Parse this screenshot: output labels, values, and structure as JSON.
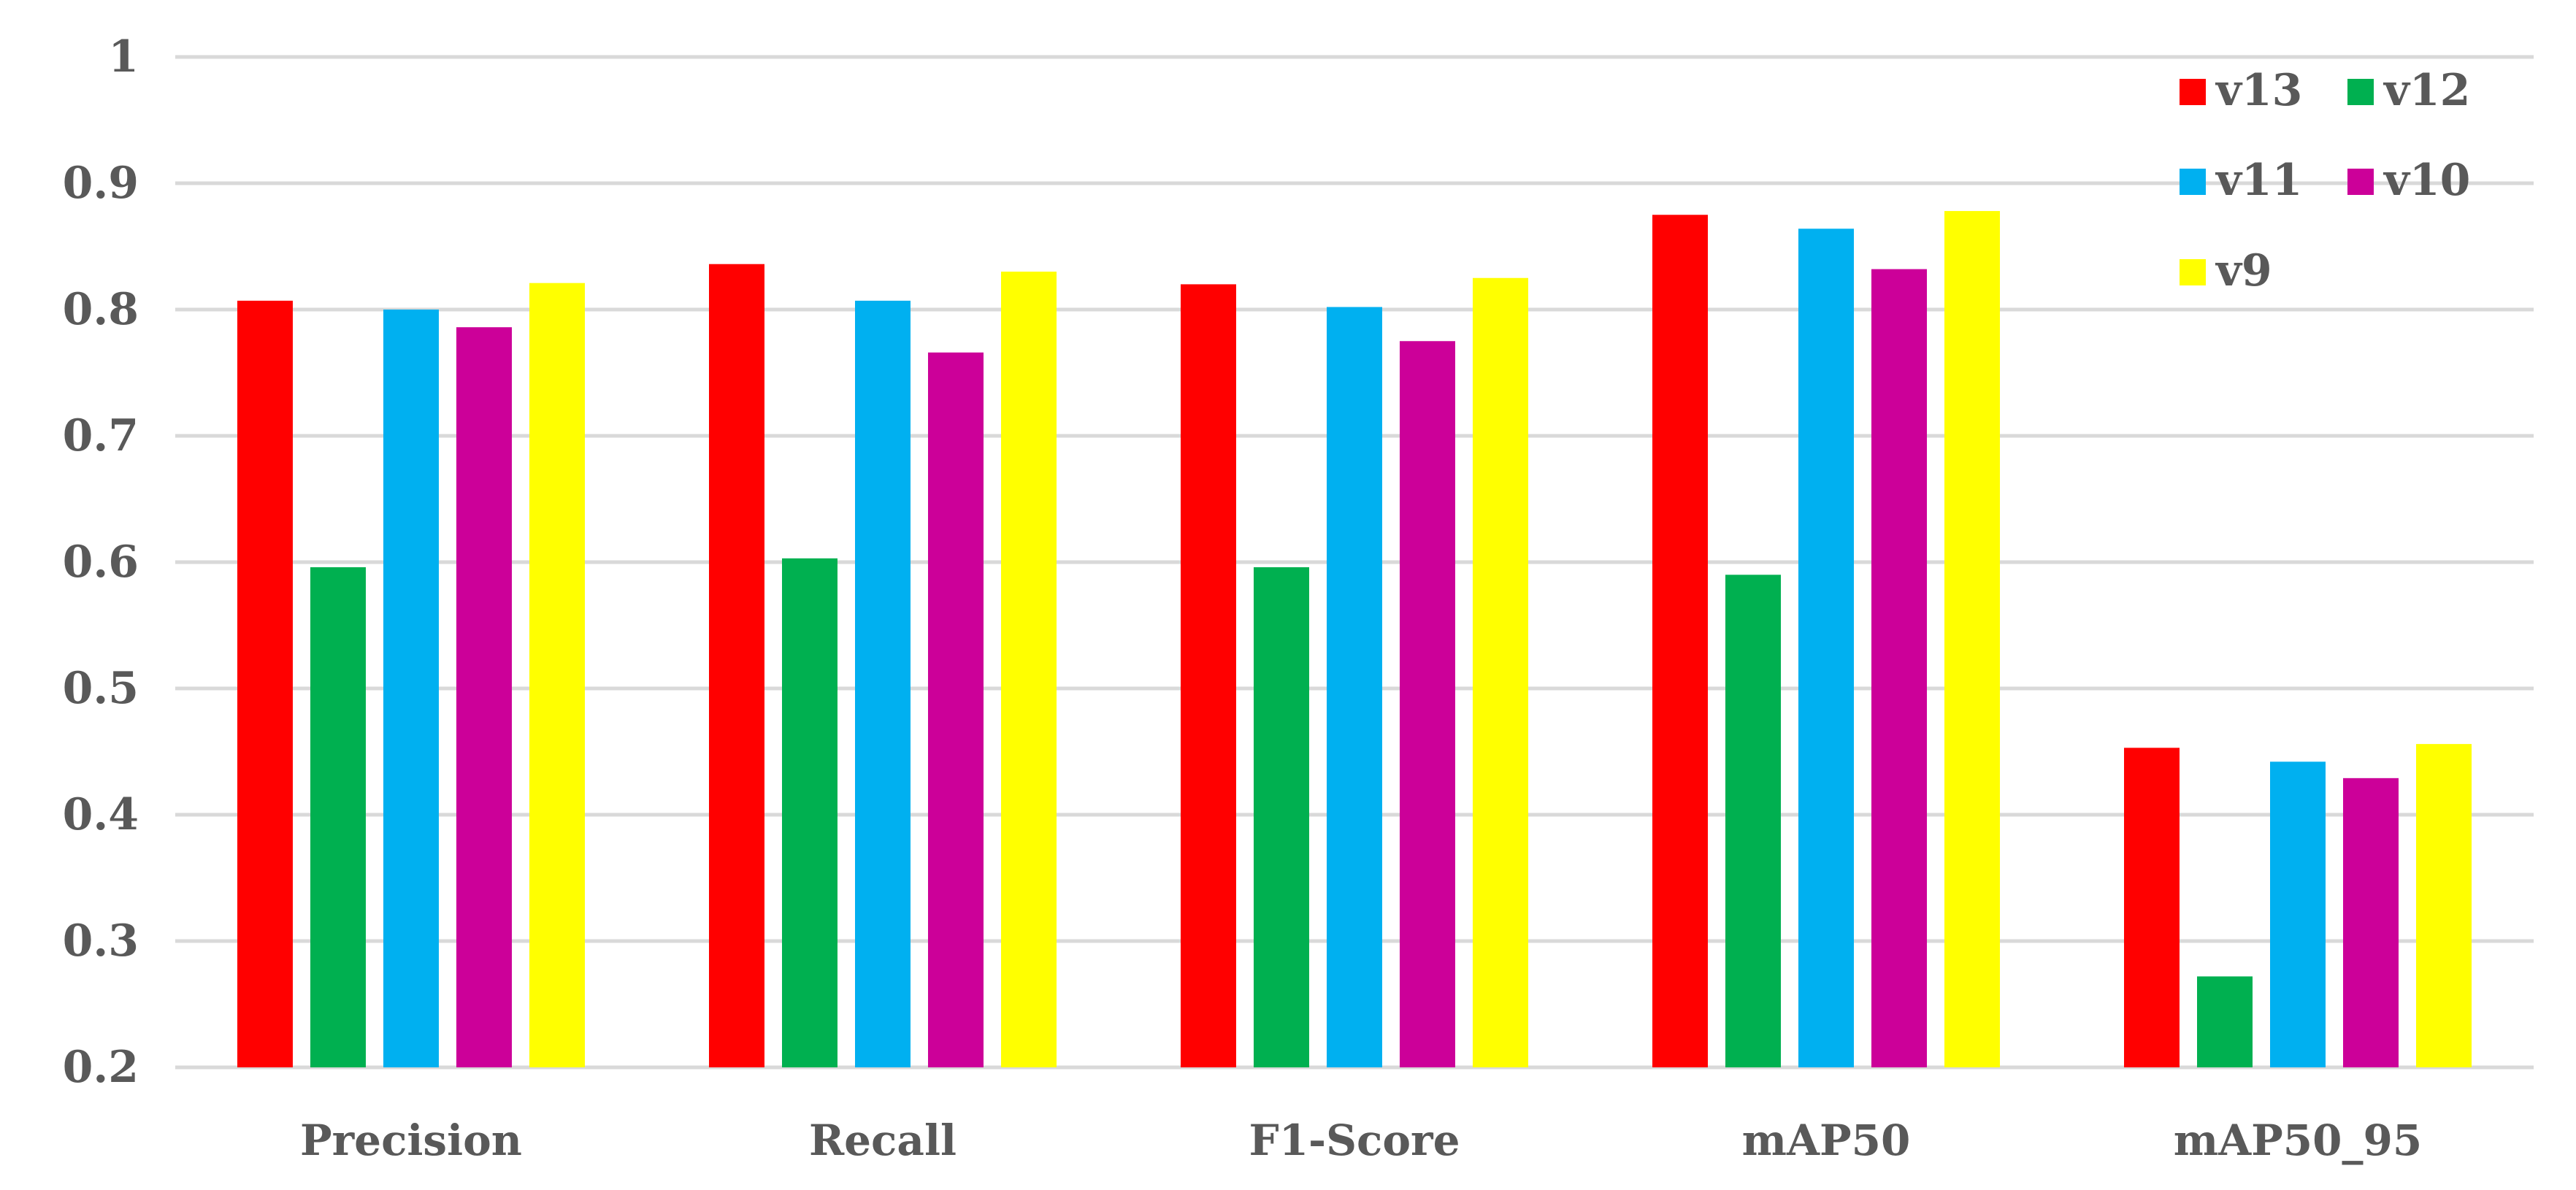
{
  "chart_data": {
    "type": "bar",
    "title": "",
    "xlabel": "",
    "ylabel": "",
    "ylim": [
      0.2,
      1
    ],
    "yticks": [
      0.2,
      0.3,
      0.4,
      0.5,
      0.6,
      0.7,
      0.8,
      0.9,
      1
    ],
    "ytick_labels": [
      "0.2",
      "0.3",
      "0.4",
      "0.5",
      "0.6",
      "0.7",
      "0.8",
      "0.9",
      "1"
    ],
    "grid": true,
    "legend_position": "top-right",
    "categories": [
      "Precision",
      "Recall",
      "F1-Score",
      "mAP50",
      "mAP50_95"
    ],
    "series": [
      {
        "name": "v13",
        "color": "#ff0000",
        "values": [
          0.807,
          0.836,
          0.82,
          0.875,
          0.453
        ]
      },
      {
        "name": "v12",
        "color": "#00b050",
        "values": [
          0.596,
          0.603,
          0.596,
          0.59,
          0.272
        ]
      },
      {
        "name": "v11",
        "color": "#00b0f0",
        "values": [
          0.8,
          0.807,
          0.802,
          0.864,
          0.442
        ]
      },
      {
        "name": "v10",
        "color": "#cc0099",
        "values": [
          0.786,
          0.766,
          0.775,
          0.832,
          0.429
        ]
      },
      {
        "name": "v9",
        "color": "#ffff00",
        "values": [
          0.821,
          0.83,
          0.825,
          0.878,
          0.456
        ]
      }
    ]
  }
}
